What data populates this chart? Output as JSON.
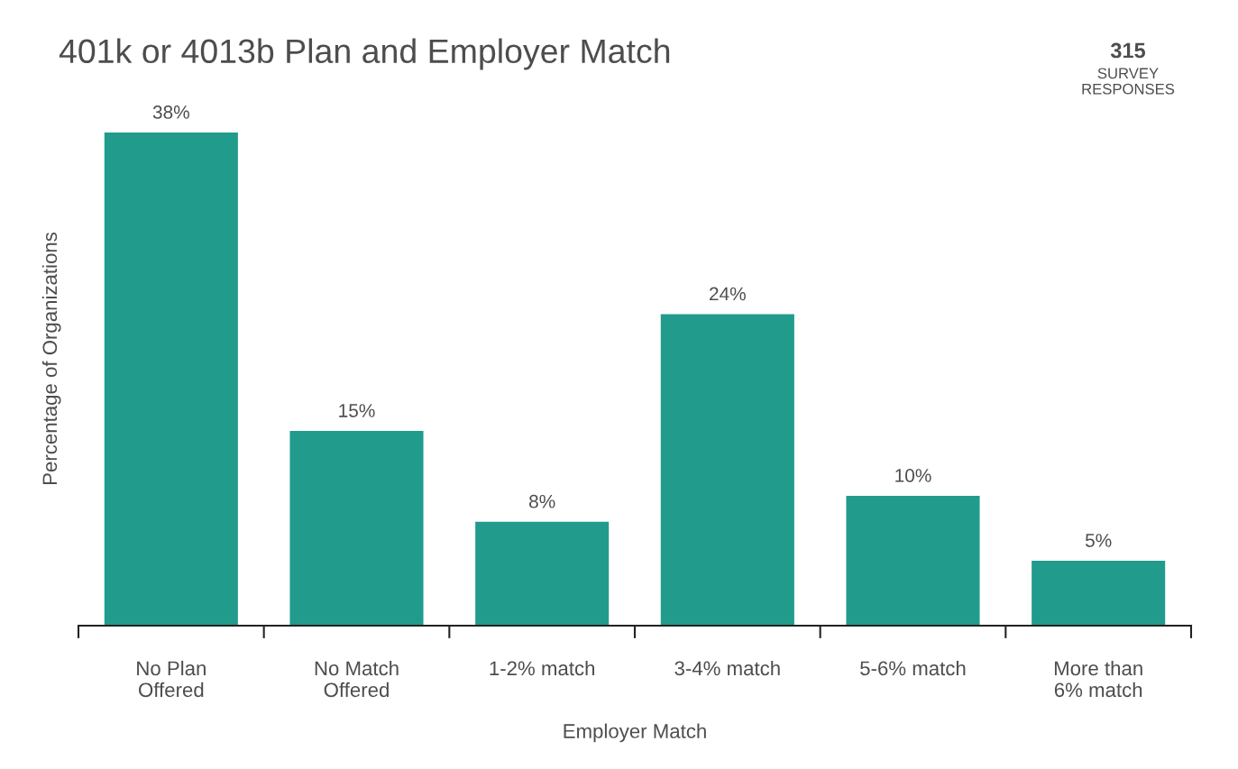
{
  "chart_data": {
    "type": "bar",
    "title": "401k or 4013b Plan and Employer Match",
    "xlabel": "Employer Match",
    "ylabel": "Percentage of Organizations",
    "categories": [
      "No Plan\nOffered",
      "No Match\nOffered",
      "1-2% match",
      "3-4% match",
      "5-6% match",
      "More than\n6% match"
    ],
    "values": [
      38,
      15,
      8,
      24,
      10,
      5
    ],
    "value_labels": [
      "38%",
      "15%",
      "8%",
      "24%",
      "10%",
      "5%"
    ],
    "color": "#219b8c",
    "annotations": [
      "315",
      "SURVEY\nRESPONSES"
    ],
    "grid": false,
    "legend": false
  }
}
